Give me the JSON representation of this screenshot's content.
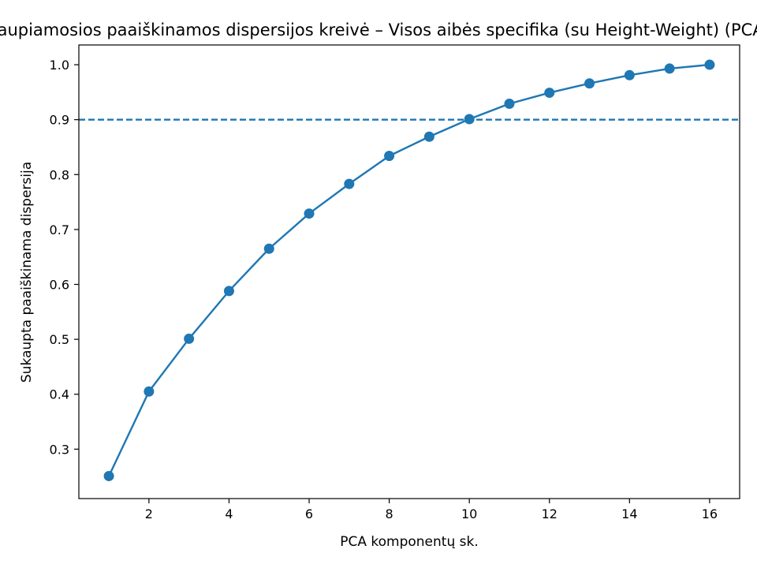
{
  "chart_data": {
    "type": "line",
    "title": "Kaupiamosios paaiškinamos dispersijos kreivė – Visos aibės specifika (su Height-Weight) (PCA)",
    "xlabel": "PCA komponentų sk.",
    "ylabel": "Sukaupta paaiškinama dispersija",
    "xlim": [
      0.25,
      16.75
    ],
    "ylim": [
      0.21,
      1.036
    ],
    "x_ticks": [
      2,
      4,
      6,
      8,
      10,
      12,
      14,
      16
    ],
    "y_ticks": [
      0.3,
      0.4,
      0.5,
      0.6,
      0.7,
      0.8,
      0.9,
      1.0
    ],
    "x_tick_labels": [
      "2",
      "4",
      "6",
      "8",
      "10",
      "12",
      "14",
      "16"
    ],
    "y_tick_labels": [
      "0.3",
      "0.4",
      "0.5",
      "0.6",
      "0.7",
      "0.8",
      "0.9",
      "1.0"
    ],
    "series": [
      {
        "x": [
          1,
          2,
          3,
          4,
          5,
          6,
          7,
          8,
          9,
          10,
          11,
          12,
          13,
          14,
          15,
          16
        ],
        "values": [
          0.251,
          0.405,
          0.501,
          0.588,
          0.665,
          0.729,
          0.783,
          0.834,
          0.869,
          0.901,
          0.929,
          0.949,
          0.966,
          0.981,
          0.993,
          1.0
        ],
        "color": "#1f77b4"
      }
    ],
    "reference_line": {
      "y": 0.9,
      "style": "dashed",
      "color": "#1f77b4"
    },
    "grid": false,
    "legend": "none"
  }
}
